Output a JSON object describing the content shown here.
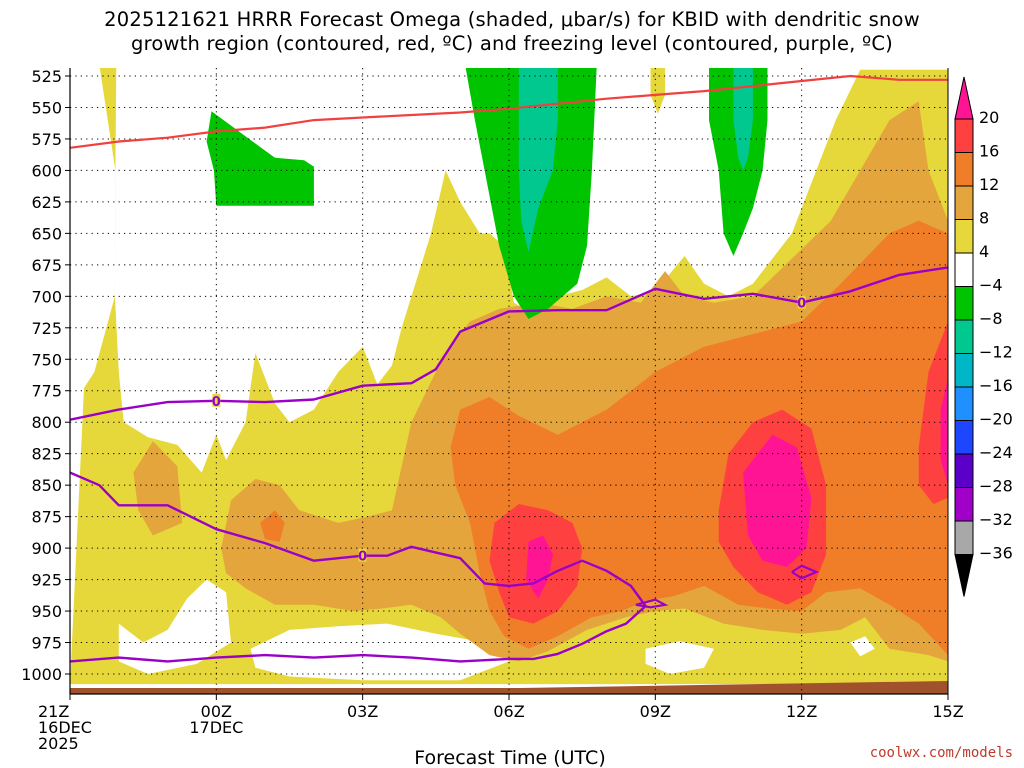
{
  "chart_data": {
    "type": "heatmap",
    "title_lines": [
      "2025121621 HRRR Forecast Omega (shaded, μbar/s) for KBID with dendritic snow",
      "growth region (contoured, red, ºC) and freezing level (contoured, purple, ºC)"
    ],
    "xlabel": "Forecast Time (UTC)",
    "ylabel": "",
    "credit": "coolwx.com/models",
    "x_ticks": [
      {
        "hour": 0,
        "lines": [
          "21Z",
          "16DEC",
          "2025"
        ]
      },
      {
        "hour": 3,
        "lines": [
          "00Z",
          "17DEC"
        ]
      },
      {
        "hour": 6,
        "lines": [
          "03Z"
        ]
      },
      {
        "hour": 9,
        "lines": [
          "06Z"
        ]
      },
      {
        "hour": 12,
        "lines": [
          "09Z"
        ]
      },
      {
        "hour": 15,
        "lines": [
          "12Z"
        ]
      },
      {
        "hour": 18,
        "lines": [
          "15Z"
        ]
      }
    ],
    "xlim": [
      0,
      18
    ],
    "y_ticks": [
      "525",
      "550",
      "575",
      "600",
      "625",
      "650",
      "675",
      "700",
      "725",
      "750",
      "775",
      "800",
      "825",
      "850",
      "875",
      "900",
      "925",
      "950",
      "975",
      "1000"
    ],
    "ylim": [
      525,
      1015
    ],
    "colorbar": {
      "labels": [
        "20",
        "16",
        "12",
        "8",
        "4",
        "−4",
        "−8",
        "−12",
        "−16",
        "−20",
        "−24",
        "−28",
        "−32",
        "−36"
      ],
      "colors": [
        "#ff1493",
        "#ff4040",
        "#f07d28",
        "#e4a63c",
        "#e6d83a",
        "#ffffff",
        "#00c400",
        "#00c88e",
        "#00b7c8",
        "#1e90ff",
        "#1e46ff",
        "#5a00c8",
        "#a000c8",
        "#a8a8a8",
        "#000000"
      ]
    },
    "colors": {
      "yellow": "#e6d83a",
      "orange_light": "#e4a63c",
      "orange": "#f07d28",
      "red": "#ff4040",
      "magenta": "#ff1493",
      "green": "#00c400",
      "teal": "#00c88e",
      "dgz_line": "#f04040",
      "freeze_line": "#9a00c8",
      "ground": "#a0522d"
    },
    "contour_labels": [
      {
        "text": "0",
        "hour": 3.0,
        "p": 783
      },
      {
        "text": "0",
        "hour": 6.0,
        "p": 906
      },
      {
        "text": "0",
        "hour": 15.0,
        "p": 705
      }
    ],
    "dgz_line": [
      [
        0,
        582
      ],
      [
        1,
        577
      ],
      [
        2,
        574
      ],
      [
        3,
        569
      ],
      [
        4,
        566
      ],
      [
        5,
        560
      ],
      [
        6,
        558
      ],
      [
        7,
        556
      ],
      [
        8,
        554
      ],
      [
        9,
        551
      ],
      [
        10,
        547
      ],
      [
        11,
        543
      ],
      [
        12,
        540
      ],
      [
        13,
        537
      ],
      [
        14,
        533
      ],
      [
        15,
        529
      ],
      [
        16,
        525
      ],
      [
        17,
        528
      ],
      [
        18,
        528
      ]
    ],
    "freeze_lines": [
      [
        [
          0,
          798
        ],
        [
          1,
          790
        ],
        [
          2,
          784
        ],
        [
          3,
          783
        ],
        [
          4,
          784
        ],
        [
          5,
          782
        ],
        [
          6,
          771
        ],
        [
          7,
          769
        ],
        [
          7.5,
          758
        ],
        [
          8,
          728
        ],
        [
          9,
          712
        ],
        [
          10,
          711
        ],
        [
          11,
          711
        ],
        [
          12,
          694
        ],
        [
          13,
          702
        ],
        [
          14,
          698
        ],
        [
          15,
          705
        ],
        [
          16,
          696
        ],
        [
          17,
          683
        ],
        [
          18,
          677
        ]
      ],
      [
        [
          0,
          840
        ],
        [
          0.6,
          850
        ],
        [
          1,
          866
        ],
        [
          2,
          866
        ],
        [
          3,
          885
        ],
        [
          4,
          896
        ],
        [
          5,
          910
        ],
        [
          6,
          906
        ],
        [
          6.5,
          906
        ],
        [
          7,
          899
        ],
        [
          8,
          908
        ],
        [
          8.5,
          928
        ],
        [
          9,
          930
        ],
        [
          9.5,
          928
        ],
        [
          10,
          918
        ],
        [
          10.5,
          910
        ],
        [
          11,
          918
        ],
        [
          11.5,
          930
        ],
        [
          11.8,
          946
        ],
        [
          11.4,
          960
        ],
        [
          11,
          966
        ],
        [
          10.5,
          976
        ],
        [
          10,
          984
        ],
        [
          9.5,
          988
        ],
        [
          9,
          988
        ],
        [
          8,
          990
        ],
        [
          7,
          987
        ],
        [
          6,
          985
        ],
        [
          5,
          987
        ],
        [
          4,
          985
        ],
        [
          3,
          987
        ],
        [
          2,
          990
        ],
        [
          1,
          987
        ],
        [
          0,
          990
        ]
      ]
    ],
    "closed_contours": [
      [
        [
          11.6,
          945
        ],
        [
          12,
          941
        ],
        [
          12.2,
          945
        ],
        [
          11.9,
          947
        ],
        [
          11.6,
          945
        ]
      ],
      [
        [
          14.8,
          919
        ],
        [
          15,
          914
        ],
        [
          15.3,
          919
        ],
        [
          15,
          924
        ],
        [
          14.8,
          919
        ]
      ]
    ]
  }
}
